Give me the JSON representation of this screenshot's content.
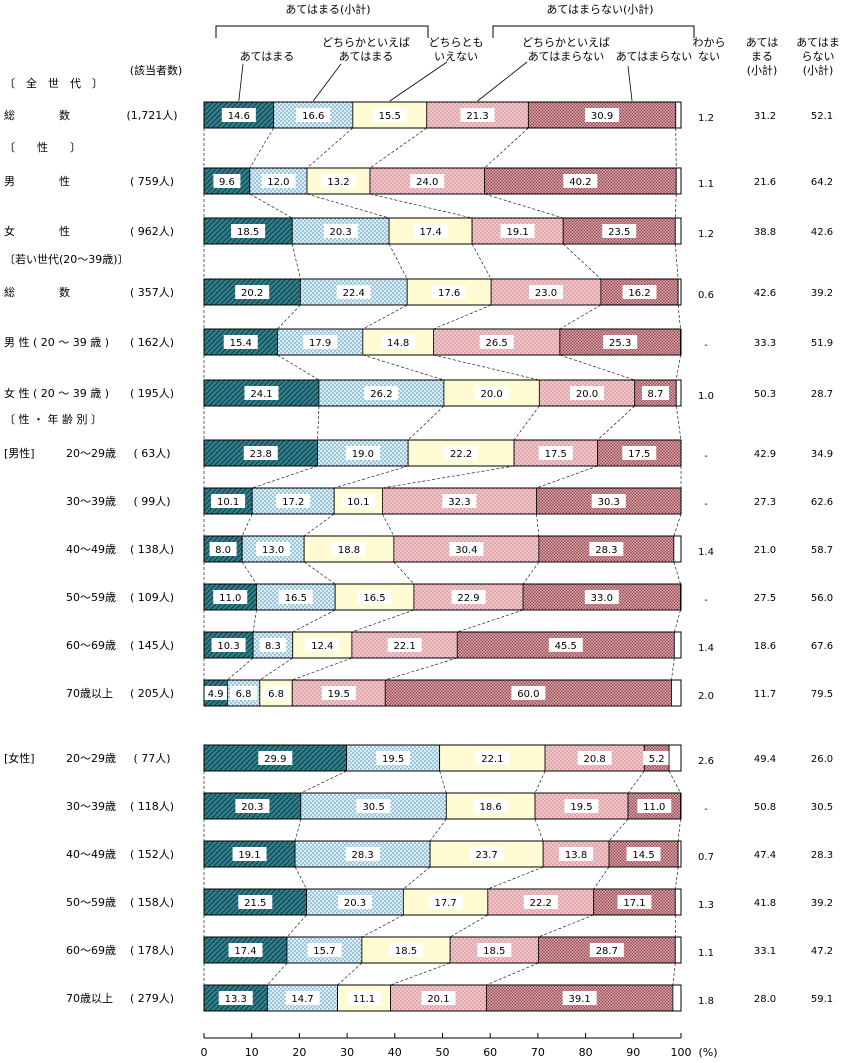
{
  "chart_data": {
    "type": "bar",
    "stacked": true,
    "orientation": "horizontal",
    "title": "",
    "xlim": [
      0,
      100
    ],
    "x_unit": "(%)",
    "x_ticks": [
      "0",
      "10",
      "20",
      "30",
      "40",
      "50",
      "60",
      "70",
      "80",
      "90",
      "100"
    ],
    "respondent_header": "(該当者数)",
    "brackets": [
      {
        "label": "あてはまる(小計)"
      },
      {
        "label": "あてはまらない(小計)"
      }
    ],
    "series": [
      {
        "name": "あてはまる",
        "color": "#2f7f8c"
      },
      {
        "name": "どちらかといえば あてはまる",
        "color": "#d8eef6"
      },
      {
        "name": "どちらとも いえない",
        "color": "#fffbd2"
      },
      {
        "name": "どちらかといえば あてはまらない",
        "color": "#f2c4c8"
      },
      {
        "name": "あてはまらない",
        "color": "#cf8d93"
      }
    ],
    "legend_labels": [
      {
        "lines": [
          "あてはまる"
        ]
      },
      {
        "lines": [
          "どちらかといえば",
          "あてはまる"
        ]
      },
      {
        "lines": [
          "どちらとも",
          "いえない"
        ]
      },
      {
        "lines": [
          "どちらかといえば",
          "あてはまらない"
        ]
      },
      {
        "lines": [
          "あてはまらない"
        ]
      }
    ],
    "side_headers": [
      {
        "lines": [
          "わから",
          "ない"
        ]
      },
      {
        "lines": [
          "あては",
          "まる",
          "(小計)"
        ]
      },
      {
        "lines": [
          "あてはま",
          "らない",
          "(小計)"
        ]
      }
    ],
    "sections": [
      {
        "label": "〔　全　世　代　〕"
      },
      {
        "label": "〔　　性　　〕"
      },
      {
        "label": "〔若い世代(20～39歳)〕"
      },
      {
        "label": "〔 性 ・ 年 齢 別 〕"
      }
    ],
    "rows": [
      {
        "group": "",
        "label": "総　　　　数",
        "n": "(1,721人)",
        "values": [
          14.6,
          16.6,
          15.5,
          21.3,
          30.9
        ],
        "value_labels": [
          "14.6",
          "16.6",
          "15.5",
          "21.3",
          "30.9"
        ],
        "dk": 1.2,
        "dk_label": "1.2",
        "agree": "31.2",
        "disagree": "52.1"
      },
      {
        "group": "",
        "label": "男　　　　性",
        "n": "( 759人)",
        "values": [
          9.6,
          12.0,
          13.2,
          24.0,
          40.2
        ],
        "value_labels": [
          "9.6",
          "12.0",
          "13.2",
          "24.0",
          "40.2"
        ],
        "dk": 1.1,
        "dk_label": "1.1",
        "agree": "21.6",
        "disagree": "64.2"
      },
      {
        "group": "",
        "label": "女　　　　性",
        "n": "( 962人)",
        "values": [
          18.5,
          20.3,
          17.4,
          19.1,
          23.5
        ],
        "value_labels": [
          "18.5",
          "20.3",
          "17.4",
          "19.1",
          "23.5"
        ],
        "dk": 1.2,
        "dk_label": "1.2",
        "agree": "38.8",
        "disagree": "42.6"
      },
      {
        "group": "",
        "label": "総　　　　数",
        "n": "( 357人)",
        "values": [
          20.2,
          22.4,
          17.6,
          23.0,
          16.2
        ],
        "value_labels": [
          "20.2",
          "22.4",
          "17.6",
          "23.0",
          "16.2"
        ],
        "dk": 0.6,
        "dk_label": "0.6",
        "agree": "42.6",
        "disagree": "39.2"
      },
      {
        "group": "",
        "label": "男 性 ( 20 ～ 39 歳 )",
        "n": "( 162人)",
        "values": [
          15.4,
          17.9,
          14.8,
          26.5,
          25.3
        ],
        "value_labels": [
          "15.4",
          "17.9",
          "14.8",
          "26.5",
          "25.3"
        ],
        "dk": 0,
        "dk_label": "-",
        "agree": "33.3",
        "disagree": "51.9"
      },
      {
        "group": "",
        "label": "女 性 ( 20 ～ 39 歳 )",
        "n": "( 195人)",
        "values": [
          24.1,
          26.2,
          20.0,
          20.0,
          8.7
        ],
        "value_labels": [
          "24.1",
          "26.2",
          "20.0",
          "20.0",
          "8.7"
        ],
        "dk": 1.0,
        "dk_label": "1.0",
        "agree": "50.3",
        "disagree": "28.7"
      },
      {
        "group": "[男性]",
        "label": "20～29歳",
        "n": "(  63人)",
        "values": [
          23.8,
          19.0,
          22.2,
          17.5,
          17.5
        ],
        "value_labels": [
          "23.8",
          "19.0",
          "22.2",
          "17.5",
          "17.5"
        ],
        "dk": 0,
        "dk_label": "-",
        "agree": "42.9",
        "disagree": "34.9"
      },
      {
        "group": "",
        "label": "30～39歳",
        "n": "(  99人)",
        "values": [
          10.1,
          17.2,
          10.1,
          32.3,
          30.3
        ],
        "value_labels": [
          "10.1",
          "17.2",
          "10.1",
          "32.3",
          "30.3"
        ],
        "dk": 0,
        "dk_label": "-",
        "agree": "27.3",
        "disagree": "62.6"
      },
      {
        "group": "",
        "label": "40～49歳",
        "n": "( 138人)",
        "values": [
          8.0,
          13.0,
          18.8,
          30.4,
          28.3
        ],
        "value_labels": [
          "8.0",
          "13.0",
          "18.8",
          "30.4",
          "28.3"
        ],
        "dk": 1.4,
        "dk_label": "1.4",
        "agree": "21.0",
        "disagree": "58.7"
      },
      {
        "group": "",
        "label": "50～59歳",
        "n": "( 109人)",
        "values": [
          11.0,
          16.5,
          16.5,
          22.9,
          33.0
        ],
        "value_labels": [
          "11.0",
          "16.5",
          "16.5",
          "22.9",
          "33.0"
        ],
        "dk": 0,
        "dk_label": "-",
        "agree": "27.5",
        "disagree": "56.0"
      },
      {
        "group": "",
        "label": "60～69歳",
        "n": "( 145人)",
        "values": [
          10.3,
          8.3,
          12.4,
          22.1,
          45.5
        ],
        "value_labels": [
          "10.3",
          "8.3",
          "12.4",
          "22.1",
          "45.5"
        ],
        "dk": 1.4,
        "dk_label": "1.4",
        "agree": "18.6",
        "disagree": "67.6"
      },
      {
        "group": "",
        "label": "70歳以上",
        "n": "( 205人)",
        "values": [
          4.9,
          6.8,
          6.8,
          19.5,
          60.0
        ],
        "value_labels": [
          "4.9",
          "6.8",
          "6.8",
          "19.5",
          "60.0"
        ],
        "dk": 2.0,
        "dk_label": "2.0",
        "agree": "11.7",
        "disagree": "79.5"
      },
      {
        "group": "[女性]",
        "label": "20～29歳",
        "n": "(  77人)",
        "values": [
          29.9,
          19.5,
          22.1,
          20.8,
          5.2
        ],
        "value_labels": [
          "29.9",
          "19.5",
          "22.1",
          "20.8",
          "5.2"
        ],
        "dk": 2.6,
        "dk_label": "2.6",
        "agree": "49.4",
        "disagree": "26.0"
      },
      {
        "group": "",
        "label": "30～39歳",
        "n": "( 118人)",
        "values": [
          20.3,
          30.5,
          18.6,
          19.5,
          11.0
        ],
        "value_labels": [
          "20.3",
          "30.5",
          "18.6",
          "19.5",
          "11.0"
        ],
        "dk": 0,
        "dk_label": "-",
        "agree": "50.8",
        "disagree": "30.5"
      },
      {
        "group": "",
        "label": "40～49歳",
        "n": "( 152人)",
        "values": [
          19.1,
          28.3,
          23.7,
          13.8,
          14.5
        ],
        "value_labels": [
          "19.1",
          "28.3",
          "23.7",
          "13.8",
          "14.5"
        ],
        "dk": 0.7,
        "dk_label": "0.7",
        "agree": "47.4",
        "disagree": "28.3"
      },
      {
        "group": "",
        "label": "50～59歳",
        "n": "( 158人)",
        "values": [
          21.5,
          20.3,
          17.7,
          22.2,
          17.1
        ],
        "value_labels": [
          "21.5",
          "20.3",
          "17.7",
          "22.2",
          "17.1"
        ],
        "dk": 1.3,
        "dk_label": "1.3",
        "agree": "41.8",
        "disagree": "39.2"
      },
      {
        "group": "",
        "label": "60～69歳",
        "n": "( 178人)",
        "values": [
          17.4,
          15.7,
          18.5,
          18.5,
          28.7
        ],
        "value_labels": [
          "17.4",
          "15.7",
          "18.5",
          "18.5",
          "28.7"
        ],
        "dk": 1.1,
        "dk_label": "1.1",
        "agree": "33.1",
        "disagree": "47.2"
      },
      {
        "group": "",
        "label": "70歳以上",
        "n": "( 279人)",
        "values": [
          13.3,
          14.7,
          11.1,
          20.1,
          39.1
        ],
        "value_labels": [
          "13.3",
          "14.7",
          "11.1",
          "20.1",
          "39.1"
        ],
        "dk": 1.8,
        "dk_label": "1.8",
        "agree": "28.0",
        "disagree": "59.1"
      }
    ]
  }
}
